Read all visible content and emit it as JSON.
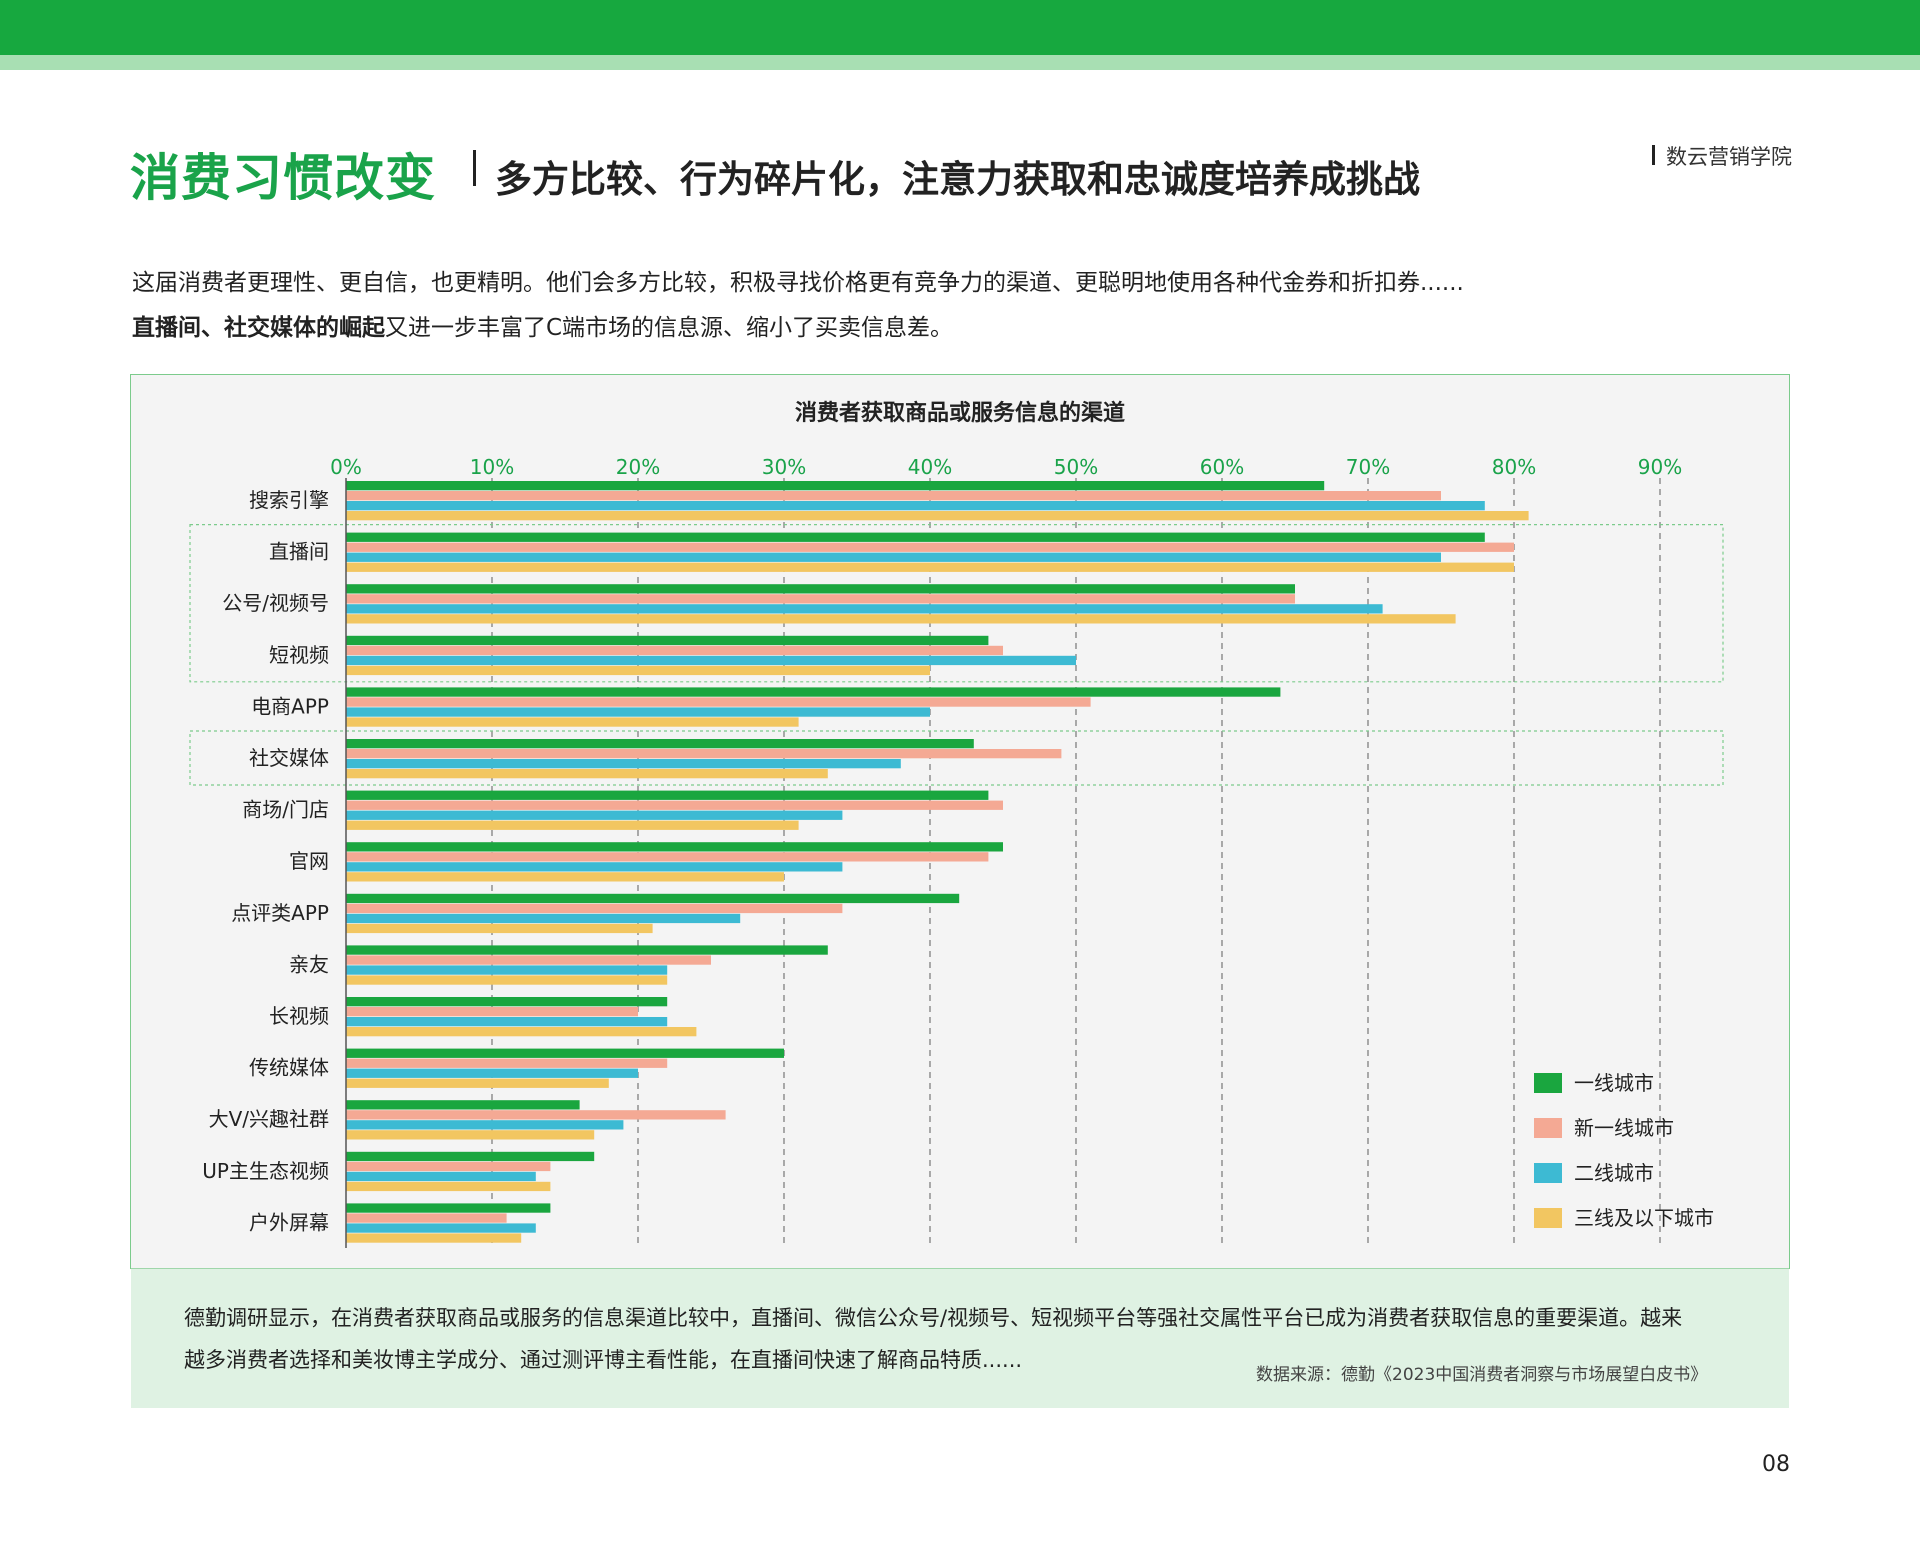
{
  "header": {
    "title_main": "消费习惯改变",
    "title_sub": "多方比较、行为碎片化，注意力获取和忠诚度培养成挑战",
    "brand": "数云营销学院"
  },
  "intro": {
    "line1": "这届消费者更理性、更自信，也更精明。他们会多方比较，积极寻找价格更有竞争力的渠道、更聪明地使用各种代金券和折扣券......",
    "line2_bold": "直播间、社交媒体的崛起",
    "line2_rest": "又进一步丰富了C端市场的信息源、缩小了买卖信息差。"
  },
  "chart_data": {
    "type": "bar",
    "orientation": "horizontal",
    "title": "消费者获取商品或服务信息的渠道",
    "xlim": [
      0,
      90
    ],
    "xticks": [
      "0%",
      "10%",
      "20%",
      "30%",
      "40%",
      "50%",
      "60%",
      "70%",
      "80%",
      "90%"
    ],
    "grid": true,
    "legend_position": "bottom-right",
    "categories": [
      "搜索引擎",
      "直播间",
      "公号/视频号",
      "短视频",
      "电商APP",
      "社交媒体",
      "商场/门店",
      "官网",
      "点评类APP",
      "亲友",
      "长视频",
      "传统媒体",
      "大V/兴趣社群",
      "UP主生态视频",
      "户外屏幕"
    ],
    "highlight_groups": [
      [
        "直播间",
        "公号/视频号",
        "短视频"
      ],
      [
        "社交媒体"
      ]
    ],
    "series": [
      {
        "name": "一线城市",
        "color": "#1aa63f",
        "values": [
          67,
          78,
          65,
          44,
          64,
          43,
          44,
          45,
          42,
          33,
          22,
          30,
          16,
          17,
          14
        ]
      },
      {
        "name": "新一线城市",
        "color": "#f4a994",
        "values": [
          75,
          80,
          65,
          45,
          51,
          49,
          45,
          44,
          34,
          25,
          20,
          22,
          26,
          14,
          11
        ]
      },
      {
        "name": "二线城市",
        "color": "#3dbad3",
        "values": [
          78,
          75,
          71,
          50,
          40,
          38,
          34,
          34,
          27,
          22,
          22,
          20,
          19,
          13,
          13
        ]
      },
      {
        "name": "三线及以下城市",
        "color": "#f2c661",
        "values": [
          81,
          80,
          76,
          40,
          31,
          33,
          31,
          30,
          21,
          22,
          24,
          18,
          17,
          14,
          12
        ]
      }
    ]
  },
  "note": {
    "line1": "德勤调研显示，在消费者获取商品或服务的信息渠道比较中，直播间、微信公众号/视频号、短视频平台等强社交属性平台已成为消费者获取信息的重要渠道。越来",
    "line2": "越多消费者选择和美妆博主学成分、通过测评博主看性能，在直播间快速了解商品特质......",
    "source": "数据来源：德勤《2023中国消费者洞察与市场展望白皮书》"
  },
  "page_number": "08"
}
